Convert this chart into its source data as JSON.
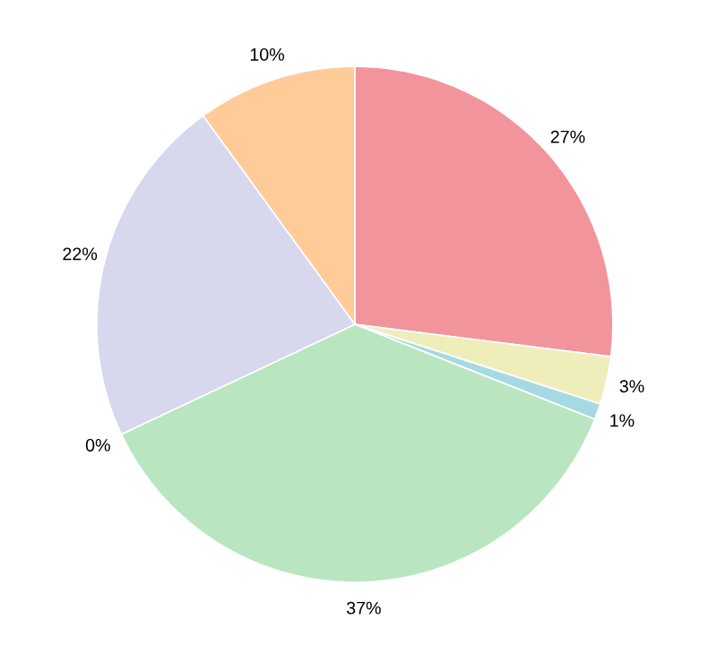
{
  "chart_data": {
    "type": "pie",
    "categories": [
      null,
      null,
      null,
      null,
      null,
      null,
      null
    ],
    "values": [
      27,
      3,
      1,
      37,
      0,
      22,
      10
    ],
    "colors": [
      "#f2949c",
      "#efeebb",
      "#a6d9e4",
      "#b9e6c1",
      "#c8c8c8",
      "#d7d7ee",
      "#fecb99"
    ],
    "value_labels": [
      "27%",
      "3%",
      "1%",
      "37%",
      "0%",
      "22%",
      "10%"
    ]
  }
}
